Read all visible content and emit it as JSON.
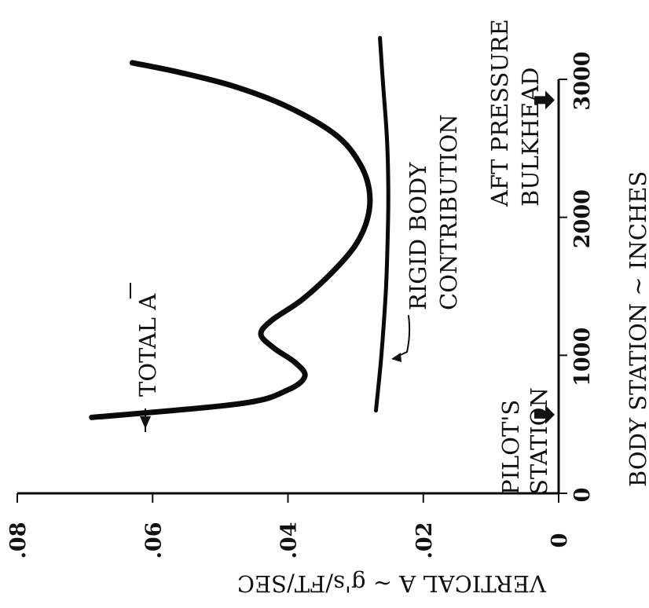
{
  "chart_data": {
    "type": "line",
    "xlabel": "BODY STATION ~ INCHES",
    "ylabel": "VERTICAL A ~ g's/FT/SEC",
    "xlim": [
      0,
      3000
    ],
    "ylim": [
      0,
      0.08
    ],
    "x_ticks": [
      "0",
      "1000",
      "2000",
      "3000"
    ],
    "y_ticks": [
      "0",
      ".02",
      ".04",
      ".06",
      ".08"
    ],
    "series": [
      {
        "name": "TOTAL A",
        "x": [
          550,
          650,
          750,
          850,
          950,
          1050,
          1150,
          1250,
          1400,
          1600,
          1800,
          2000,
          2200,
          2400,
          2600,
          2800,
          2950,
          3050,
          3120
        ],
        "y": [
          0.069,
          0.047,
          0.04,
          0.0375,
          0.039,
          0.042,
          0.044,
          0.0425,
          0.038,
          0.0335,
          0.03,
          0.0282,
          0.028,
          0.0295,
          0.033,
          0.04,
          0.048,
          0.056,
          0.063
        ]
      },
      {
        "name": "RIGID BODY CONTRIBUTION",
        "x": [
          600,
          1000,
          1500,
          2000,
          2300,
          2600,
          3000,
          3300
        ],
        "y": [
          0.027,
          0.0262,
          0.0255,
          0.0252,
          0.0252,
          0.0254,
          0.026,
          0.0264
        ]
      }
    ],
    "annotations": [
      {
        "text": "PILOT'S",
        "text2": "STATION",
        "x": 570
      },
      {
        "text": "AFT PRESSURE",
        "text2": "BULKHEAD",
        "x": 2850
      }
    ]
  }
}
